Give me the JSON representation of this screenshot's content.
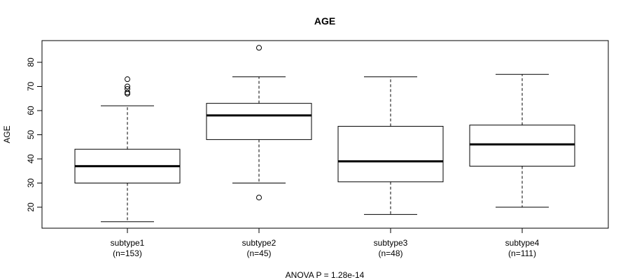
{
  "chart_data": {
    "type": "box",
    "title": "AGE",
    "ylabel": "AGE",
    "xlabel": "",
    "ylim": [
      10,
      88
    ],
    "yticks": [
      20,
      30,
      40,
      50,
      60,
      70,
      80
    ],
    "footnote": "ANOVA P = 1.28e-14",
    "groups": [
      {
        "label": "subtype1",
        "n_label": "(n=153)",
        "whisker_low": 14,
        "q1": 30,
        "median": 37,
        "q3": 44,
        "whisker_high": 62,
        "outliers": [
          67,
          67.5,
          69,
          70,
          73
        ]
      },
      {
        "label": "subtype2",
        "n_label": "(n=45)",
        "whisker_low": 30,
        "q1": 48,
        "median": 58,
        "q3": 63,
        "whisker_high": 74,
        "outliers": [
          24,
          86
        ]
      },
      {
        "label": "subtype3",
        "n_label": "(n=48)",
        "whisker_low": 17,
        "q1": 30.5,
        "median": 39,
        "q3": 53.5,
        "whisker_high": 74,
        "outliers": []
      },
      {
        "label": "subtype4",
        "n_label": "(n=111)",
        "whisker_low": 20,
        "q1": 37,
        "median": 46,
        "q3": 54,
        "whisker_high": 75,
        "outliers": []
      }
    ],
    "legend": "none",
    "grid": false
  }
}
